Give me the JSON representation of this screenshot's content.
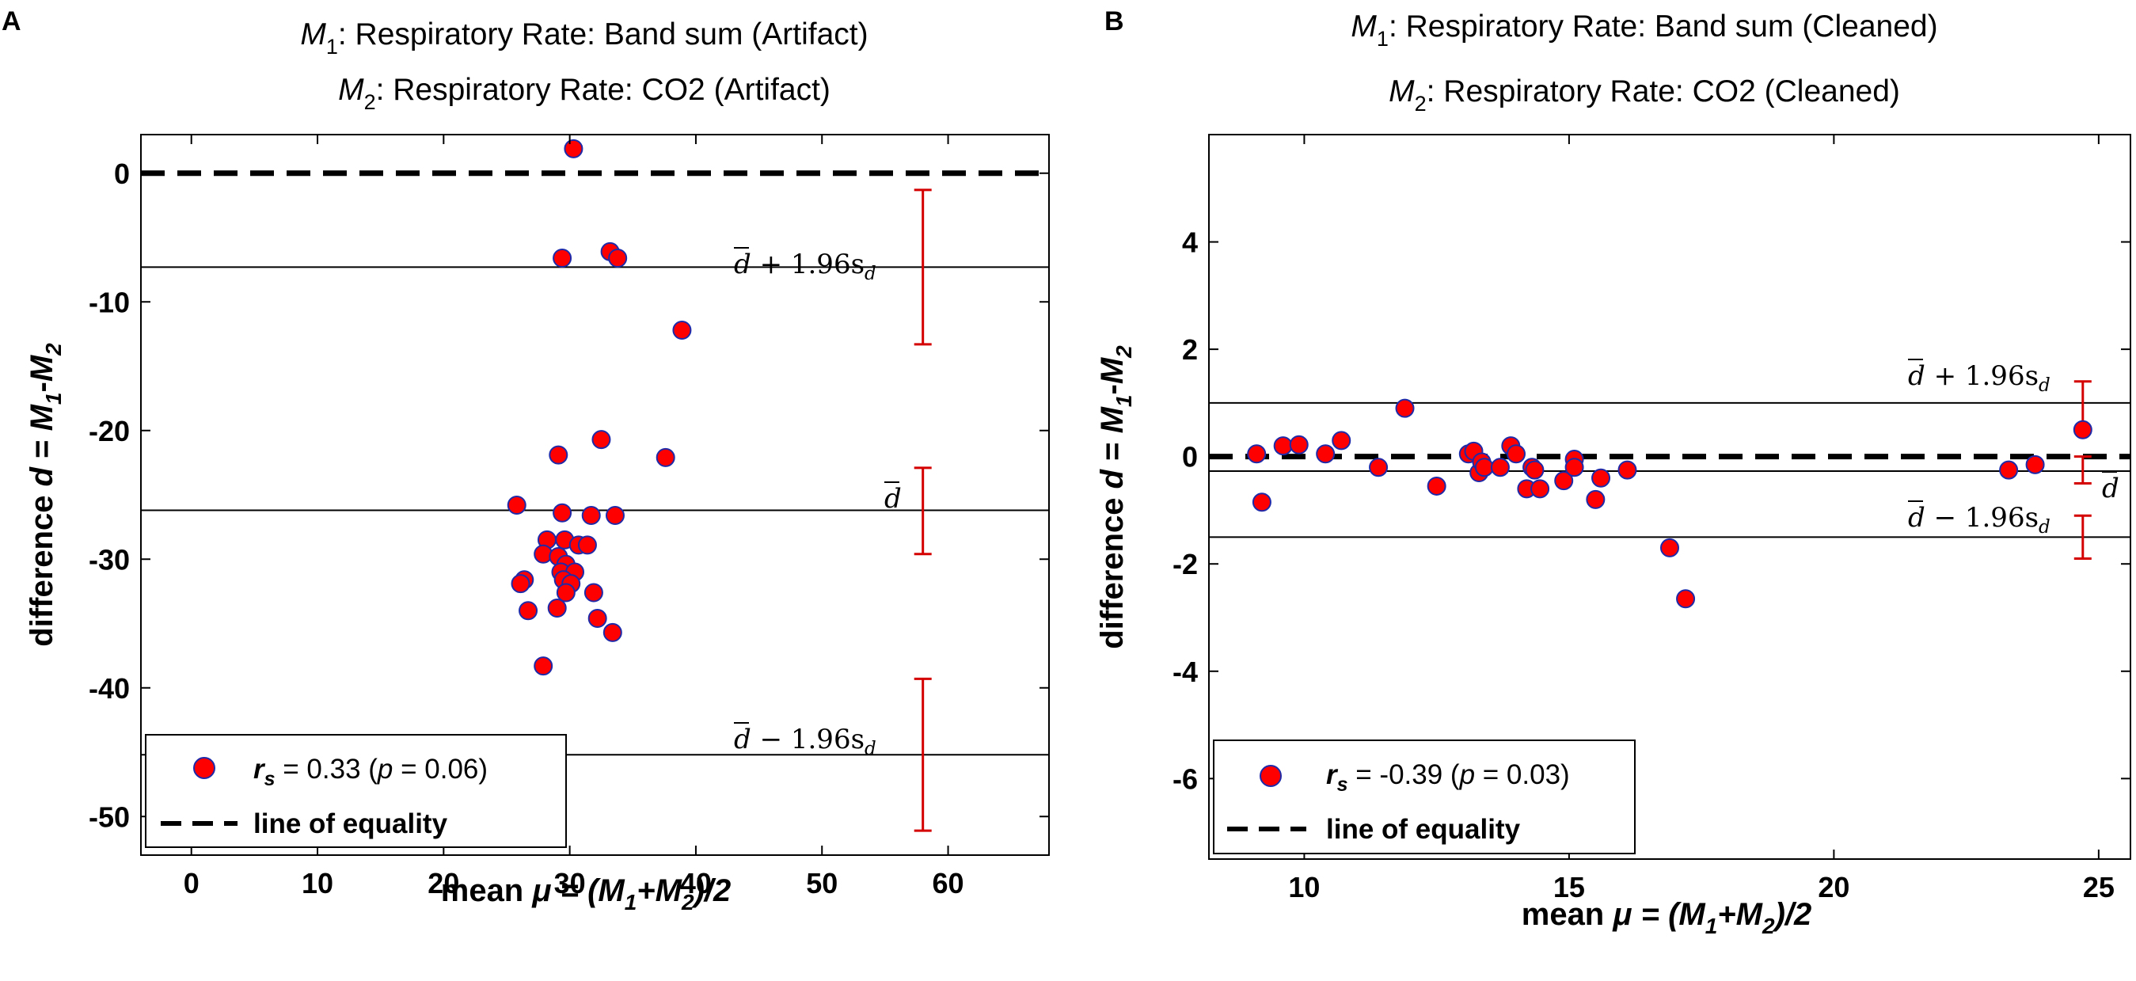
{
  "panels": [
    {
      "label": "A",
      "title_line1": {
        "sym": "M",
        "sub": "1",
        "text": ": Respiratory Rate: Band sum (Artifact)"
      },
      "title_line2": {
        "sym": "M",
        "sub": "2",
        "text": ": Respiratory Rate: CO2 (Artifact)"
      },
      "ylabel": {
        "prefix": "difference ",
        "d": "d",
        "eq": " = ",
        "m": "M",
        "s1": "1",
        "dash": "-",
        "s2": "2"
      },
      "xlabel": {
        "prefix": "mean ",
        "mu": "μ",
        "eq": " = (",
        "m1": "M",
        "s1": "1",
        "plus": "+",
        "m2": "M",
        "s2": "2",
        "end": ")/2"
      },
      "ref_labels": {
        "upper": {
          "bar": "d",
          "rest": " + 1.96s",
          "sub": "d"
        },
        "mean": {
          "bar": "d",
          "rest": "",
          "sub": ""
        },
        "lower": {
          "bar": "d",
          "rest": " − 1.96s",
          "sub": "d"
        }
      },
      "legend": {
        "r": "r",
        "rsub": "s",
        "rtext": " = 0.33 (",
        "p": "p",
        "ptext": " = 0.06)",
        "line": "line of equality"
      }
    },
    {
      "label": "B",
      "title_line1": {
        "sym": "M",
        "sub": "1",
        "text": ": Respiratory Rate: Band sum (Cleaned)"
      },
      "title_line2": {
        "sym": "M",
        "sub": "2",
        "text": ": Respiratory Rate: CO2 (Cleaned)"
      },
      "ylabel": {
        "prefix": "difference ",
        "d": "d",
        "eq": " = ",
        "m": "M",
        "s1": "1",
        "dash": "-",
        "s2": "2"
      },
      "xlabel": {
        "prefix": "mean ",
        "mu": "μ",
        "eq": " = (",
        "m1": "M",
        "s1": "1",
        "plus": "+",
        "m2": "M",
        "s2": "2",
        "end": ")/2"
      },
      "ref_labels": {
        "upper": {
          "bar": "d",
          "rest": " + 1.96s",
          "sub": "d"
        },
        "mean": {
          "bar": "d",
          "rest": "",
          "sub": ""
        },
        "lower": {
          "bar": "d",
          "rest": " − 1.96s",
          "sub": "d"
        }
      },
      "legend": {
        "r": "r",
        "rsub": "s",
        "rtext": " = -0.39 (",
        "p": "p",
        "ptext": " = 0.03)",
        "line": "line of equality"
      }
    }
  ],
  "chart_data": [
    {
      "type": "scatter",
      "panel": "A",
      "xlim": [
        -4,
        68
      ],
      "ylim": [
        -53,
        3
      ],
      "xticks": [
        0,
        10,
        20,
        30,
        40,
        50,
        60
      ],
      "yticks": [
        0,
        -10,
        -20,
        -30,
        -40,
        -50
      ],
      "xtick_labels": [
        "0",
        "10",
        "20",
        "30",
        "40",
        "50",
        "60"
      ],
      "ytick_labels": [
        "0",
        "-10",
        "-20",
        "-30",
        "-40",
        "-50"
      ],
      "equality_line": 0,
      "mean_difference": -26.2,
      "upper_loa": -7.3,
      "lower_loa": -45.2,
      "ci_x": 58,
      "ci_upper": [
        -1.3,
        -13.3
      ],
      "ci_mean": [
        -22.9,
        -29.6
      ],
      "ci_lower": [
        -39.3,
        -51.1
      ],
      "points": {
        "x": [
          30.3,
          29.4,
          33.2,
          33.8,
          38.9,
          29.1,
          32.5,
          37.6,
          25.8,
          29.4,
          31.7,
          33.6,
          28.2,
          29.6,
          30.7,
          31.4,
          27.9,
          29.1,
          29.7,
          29.3,
          30.4,
          29.5,
          26.4,
          26.1,
          30.1,
          29.7,
          31.9,
          29.0,
          32.2,
          26.7,
          33.4,
          27.9
        ],
        "y": [
          1.9,
          -6.6,
          -6.1,
          -6.6,
          -12.2,
          -21.9,
          -20.7,
          -22.1,
          -25.8,
          -26.4,
          -26.6,
          -26.6,
          -28.5,
          -28.5,
          -28.9,
          -28.9,
          -29.6,
          -29.8,
          -30.4,
          -31.0,
          -31.0,
          -31.6,
          -31.6,
          -31.9,
          -31.9,
          -32.6,
          -32.6,
          -33.8,
          -34.6,
          -34.0,
          -35.7,
          -38.3
        ]
      }
    },
    {
      "type": "scatter",
      "panel": "B",
      "xlim": [
        8.2,
        25.6
      ],
      "ylim": [
        -7.5,
        6
      ],
      "xticks": [
        10,
        15,
        20,
        25
      ],
      "yticks": [
        4,
        2,
        0,
        -2,
        -4,
        -6
      ],
      "xtick_labels": [
        "10",
        "15",
        "20",
        "25"
      ],
      "ytick_labels": [
        "4",
        "2",
        "0",
        "-2",
        "-4",
        "-6"
      ],
      "equality_line": 0,
      "mean_difference": -0.27,
      "upper_loa": 1.0,
      "lower_loa": -1.5,
      "ci_x": 24.7,
      "ci_upper": [
        1.4,
        0.5
      ],
      "ci_mean": [
        0.0,
        -0.5
      ],
      "ci_lower": [
        -1.1,
        -1.9
      ],
      "points": {
        "x": [
          9.1,
          9.2,
          9.6,
          9.9,
          10.4,
          10.7,
          11.4,
          11.9,
          12.5,
          13.1,
          13.2,
          13.3,
          13.35,
          13.4,
          13.7,
          13.9,
          14.0,
          14.2,
          14.3,
          14.45,
          14.35,
          14.9,
          15.1,
          15.1,
          15.5,
          15.6,
          16.1,
          16.9,
          17.2,
          23.3,
          23.8,
          24.7
        ],
        "y": [
          0.05,
          -0.85,
          0.2,
          0.22,
          0.05,
          0.3,
          -0.2,
          0.9,
          -0.55,
          0.05,
          0.1,
          -0.3,
          -0.1,
          -0.2,
          -0.2,
          0.2,
          0.05,
          -0.6,
          -0.2,
          -0.6,
          -0.25,
          -0.45,
          -0.05,
          -0.2,
          -0.8,
          -0.4,
          -0.25,
          -1.7,
          -2.65,
          -0.25,
          -0.15,
          0.5
        ]
      }
    }
  ]
}
